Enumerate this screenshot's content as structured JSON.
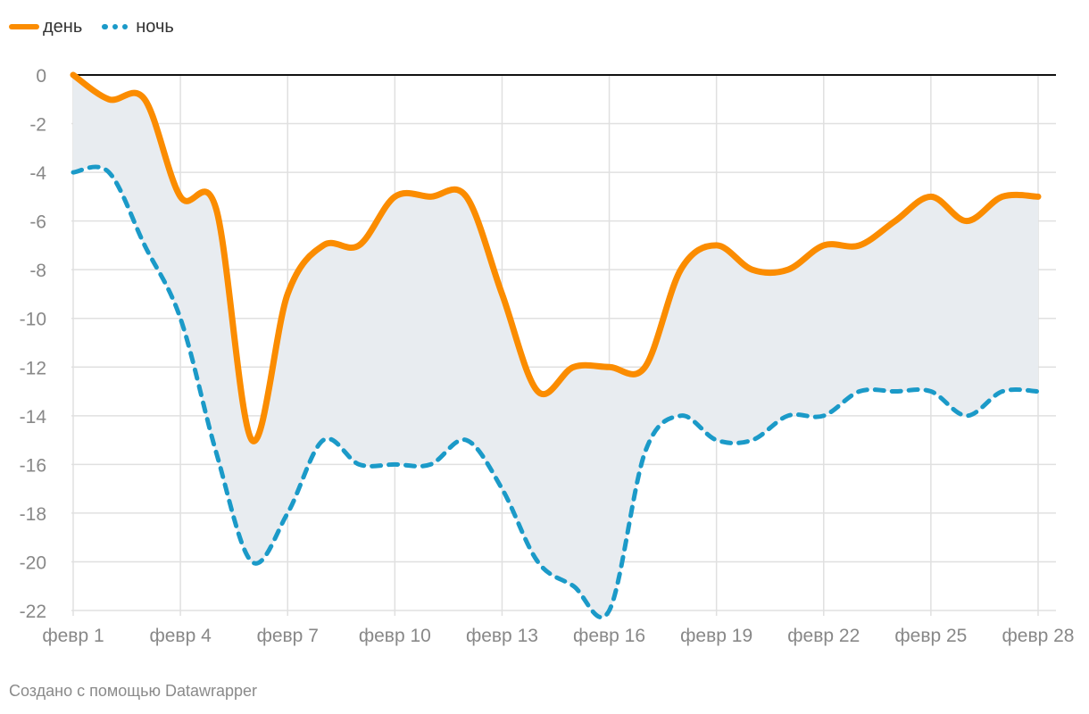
{
  "legend": [
    {
      "name": "день",
      "color": "#fb8c00",
      "style": "solid"
    },
    {
      "name": "ночь",
      "color": "#1b9ac8",
      "style": "dashed"
    }
  ],
  "credit": "Создано с помощью Datawrapper",
  "chart_data": {
    "type": "line",
    "title": "",
    "xlabel": "",
    "ylabel": "",
    "x": [
      1,
      2,
      3,
      4,
      5,
      6,
      7,
      8,
      9,
      10,
      11,
      12,
      13,
      14,
      15,
      16,
      17,
      18,
      19,
      20,
      21,
      22,
      23,
      24,
      25,
      26,
      27,
      28
    ],
    "x_tick_values": [
      1,
      4,
      7,
      10,
      13,
      16,
      19,
      22,
      25,
      28
    ],
    "x_tick_labels": [
      "февр 1",
      "февр 4",
      "февр 7",
      "февр 10",
      "февр 13",
      "февр 16",
      "февр 19",
      "февр 22",
      "февр 25",
      "февр 28"
    ],
    "ylim": [
      -22,
      0
    ],
    "y_ticks": [
      0,
      -2,
      -4,
      -6,
      -8,
      -10,
      -12,
      -14,
      -16,
      -18,
      -20,
      -22
    ],
    "y_tick_labels": [
      "0",
      "-2",
      "-4",
      "-6",
      "-8",
      "-10",
      "-12",
      "-14",
      "-16",
      "-18",
      "-20",
      "-22"
    ],
    "grid": true,
    "legend_position": "top-left",
    "range_fill_color": "#e8ecf0",
    "series": [
      {
        "name": "день",
        "color": "#fb8c00",
        "style": "solid",
        "values": [
          0,
          -1,
          -1,
          -5,
          -5.5,
          -15,
          -9,
          -7,
          -7,
          -5,
          -5,
          -5,
          -9,
          -13,
          -12,
          -12,
          -12,
          -8,
          -7,
          -8,
          -8,
          -7,
          -7,
          -6,
          -5,
          -6,
          -5,
          -5
        ]
      },
      {
        "name": "ночь",
        "color": "#1b9ac8",
        "style": "dashed",
        "values": [
          -4,
          -4,
          -7,
          -10,
          -15.5,
          -20,
          -18,
          -15,
          -16,
          -16,
          -16,
          -15,
          -17,
          -20,
          -21,
          -22,
          -15.5,
          -14,
          -15,
          -15,
          -14,
          -14,
          -13,
          -13,
          -13,
          -14,
          -13,
          -13
        ]
      }
    ]
  }
}
